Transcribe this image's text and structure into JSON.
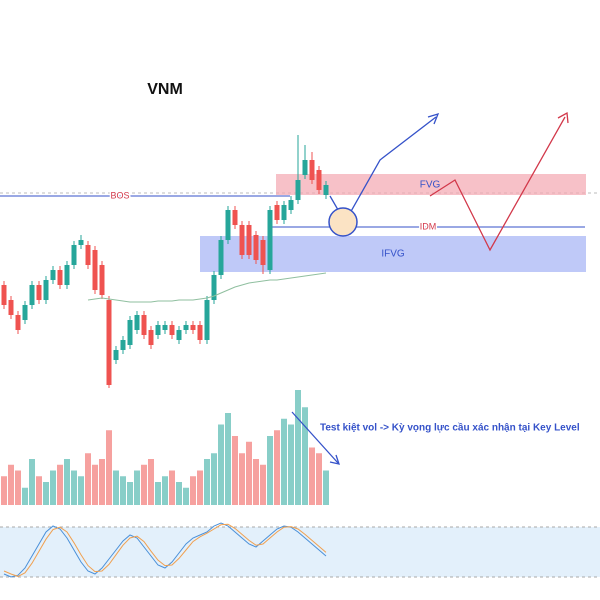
{
  "chart_data": {
    "type": "candlestick",
    "title": "VNM",
    "annotation": "Test kiệt vol -> Kỳ vọng lực cầu xác nhận tại Key Level",
    "labels": {
      "bos": "BOS",
      "fvg": "FVG",
      "idm": "IDM",
      "ifvg": "IFVG"
    },
    "up_color": "#26a69a",
    "down_color": "#ef5350",
    "ylim": [
      0,
      270
    ],
    "candles": {
      "open": [
        115,
        100,
        85,
        80,
        95,
        115,
        100,
        120,
        130,
        115,
        135,
        155,
        155,
        150,
        135,
        100,
        40,
        50,
        55,
        70,
        85,
        70,
        65,
        70,
        75,
        60,
        70,
        75,
        75,
        60,
        100,
        125,
        160,
        190,
        175,
        175,
        165,
        160,
        130,
        195,
        180,
        190,
        200,
        225,
        240,
        230,
        205
      ],
      "close": [
        95,
        85,
        70,
        95,
        115,
        100,
        120,
        130,
        115,
        135,
        155,
        160,
        135,
        110,
        105,
        15,
        50,
        60,
        80,
        85,
        65,
        55,
        75,
        75,
        65,
        70,
        75,
        70,
        60,
        100,
        125,
        160,
        190,
        175,
        145,
        145,
        140,
        135,
        190,
        180,
        195,
        200,
        220,
        240,
        220,
        210,
        215
      ],
      "high": [
        119,
        104,
        89,
        99,
        119,
        119,
        124,
        134,
        134,
        139,
        159,
        165,
        159,
        154,
        139,
        104,
        54,
        64,
        84,
        89,
        89,
        74,
        79,
        79,
        79,
        74,
        79,
        79,
        79,
        104,
        129,
        164,
        194,
        194,
        179,
        179,
        169,
        164,
        194,
        199,
        199,
        204,
        265,
        255,
        248,
        234,
        219
      ],
      "low": [
        91,
        81,
        66,
        76,
        91,
        96,
        96,
        116,
        111,
        111,
        131,
        151,
        131,
        106,
        101,
        12,
        36,
        46,
        51,
        66,
        61,
        51,
        61,
        66,
        61,
        56,
        66,
        66,
        56,
        56,
        96,
        121,
        156,
        171,
        141,
        141,
        136,
        126,
        126,
        176,
        176,
        186,
        196,
        221,
        216,
        206,
        201
      ]
    },
    "ma": {
      "color": "#8fbf9f",
      "values": [
        null,
        null,
        null,
        null,
        null,
        null,
        null,
        null,
        null,
        null,
        null,
        null,
        100,
        101,
        102,
        101,
        100,
        99,
        98,
        98,
        98,
        98,
        99,
        99,
        99,
        100,
        100,
        100,
        101,
        102,
        104,
        107,
        110,
        113,
        115,
        117,
        118,
        119,
        120,
        120,
        121,
        122,
        123,
        124,
        125,
        126,
        127
      ]
    },
    "volume": {
      "ylim": [
        0,
        100
      ],
      "values": [
        25,
        35,
        30,
        15,
        40,
        25,
        20,
        30,
        35,
        40,
        30,
        25,
        45,
        35,
        40,
        65,
        30,
        25,
        20,
        30,
        35,
        40,
        20,
        25,
        30,
        20,
        15,
        25,
        30,
        40,
        45,
        70,
        80,
        60,
        45,
        55,
        40,
        35,
        60,
        65,
        75,
        70,
        100,
        85,
        50,
        45,
        30
      ]
    },
    "oscillator": {
      "ylim": [
        0,
        100
      ],
      "series": [
        {
          "color": "#4a90d9",
          "values": [
            10,
            5,
            8,
            20,
            40,
            60,
            80,
            90,
            85,
            70,
            50,
            30,
            15,
            10,
            20,
            35,
            50,
            65,
            75,
            70,
            55,
            40,
            25,
            20,
            30,
            45,
            60,
            70,
            75,
            80,
            90,
            95,
            90,
            80,
            70,
            60,
            55,
            65,
            75,
            85,
            90,
            88,
            80,
            70,
            60,
            50,
            40
          ]
        },
        {
          "color": "#f0a050",
          "values": [
            15,
            10,
            6,
            12,
            28,
            48,
            68,
            84,
            88,
            80,
            62,
            42,
            24,
            14,
            15,
            26,
            42,
            58,
            70,
            73,
            64,
            48,
            33,
            24,
            25,
            36,
            50,
            64,
            72,
            78,
            85,
            92,
            93,
            86,
            76,
            66,
            58,
            60,
            70,
            80,
            88,
            89,
            85,
            76,
            66,
            56,
            46
          ]
        }
      ]
    }
  }
}
